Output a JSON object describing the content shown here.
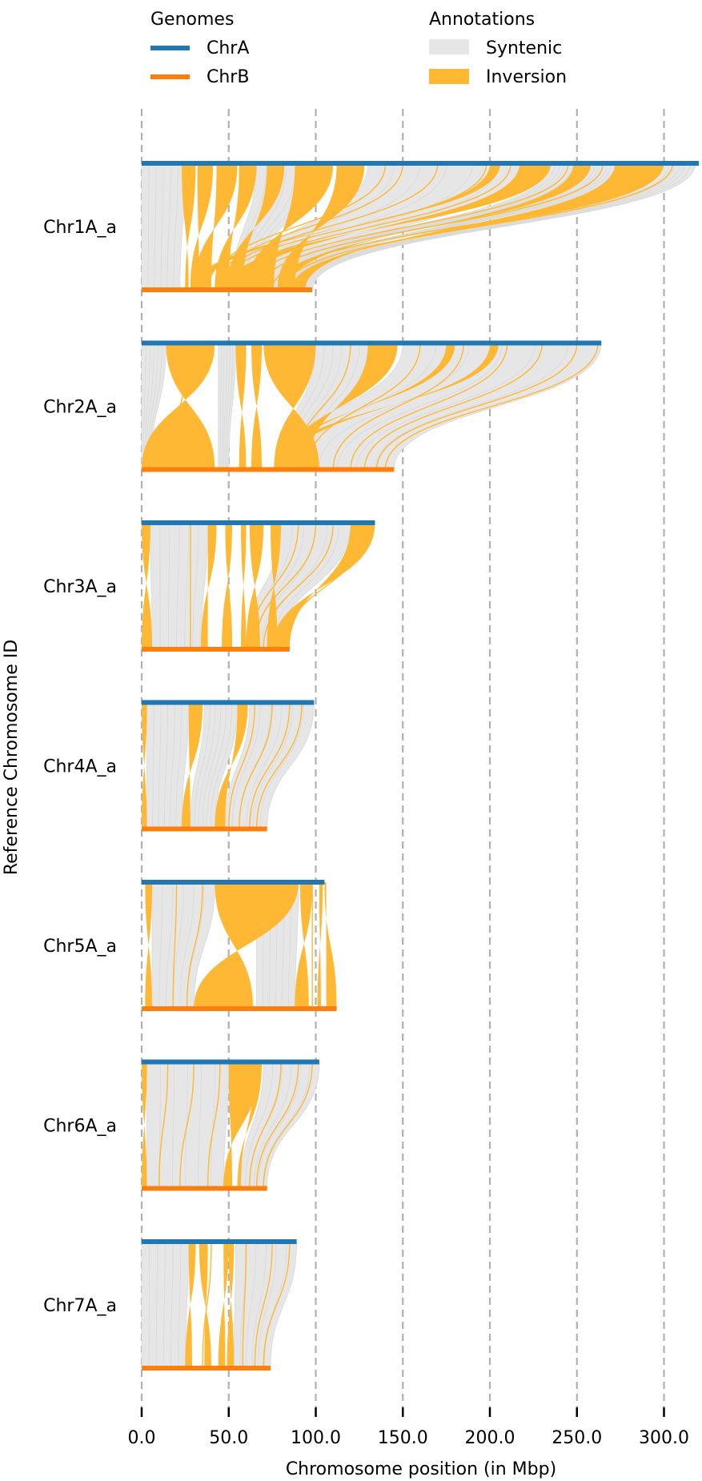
{
  "legend": {
    "genomes_title": "Genomes",
    "annotations_title": "Annotations",
    "genomes": [
      {
        "name": "ChrA",
        "color": "#1f77b4"
      },
      {
        "name": "ChrB",
        "color": "#ff7f0e"
      }
    ],
    "annotations": [
      {
        "name": "Syntenic",
        "color": "#e6e6e6"
      },
      {
        "name": "Inversion",
        "color": "#ffb833"
      }
    ]
  },
  "chart_data": {
    "type": "synteny-ribbon",
    "xlabel": "Chromosome position (in Mbp)",
    "ylabel": "Reference Chromosome ID",
    "xlim": [
      0,
      320
    ],
    "xticks": [
      0,
      50,
      100,
      150,
      200,
      250,
      300
    ],
    "xtick_labels": [
      "0.0",
      "50.0",
      "100.0",
      "150.0",
      "200.0",
      "250.0",
      "300.0"
    ],
    "grid": "vertical dashed at x ticks",
    "legend_placement": "top",
    "chromosomes": [
      {
        "id": "Chr1A_a",
        "chrA_length": 320,
        "chrB_length": 98,
        "inversions": [
          [
            23,
            31,
            25,
            27
          ],
          [
            32,
            41,
            28,
            33
          ],
          [
            43,
            55,
            30,
            40
          ],
          [
            56,
            66,
            42,
            50
          ],
          [
            72,
            82,
            49,
            58
          ],
          [
            88,
            110,
            60,
            76
          ],
          [
            112,
            128,
            78,
            88
          ],
          [
            200,
            206,
            30,
            36
          ],
          [
            217,
            235,
            48,
            60
          ],
          [
            248,
            258,
            78,
            84
          ],
          [
            272,
            300,
            86,
            94
          ]
        ],
        "syntenic": [
          [
            0,
            25,
            0,
            22
          ],
          [
            66,
            100,
            52,
            62
          ],
          [
            130,
            220,
            55,
            80
          ],
          [
            235,
            250,
            70,
            80
          ],
          [
            258,
            272,
            84,
            88
          ],
          [
            300,
            318,
            90,
            98
          ]
        ],
        "thin": [
          [
            150,
            43
          ],
          [
            198,
            46
          ],
          [
            212,
            52
          ],
          [
            245,
            62
          ],
          [
            265,
            68
          ],
          [
            290,
            75
          ],
          [
            305,
            82
          ],
          [
            295,
            88
          ],
          [
            140,
            38
          ],
          [
            170,
            45
          ]
        ]
      },
      {
        "id": "Chr2A_a",
        "chrA_length": 264,
        "chrB_length": 145,
        "inversions": [
          [
            14,
            42,
            0,
            42
          ],
          [
            54,
            60,
            56,
            60
          ],
          [
            63,
            69,
            63,
            69
          ],
          [
            70,
            100,
            76,
            102
          ],
          [
            130,
            147,
            82,
            95
          ],
          [
            175,
            180,
            78,
            82
          ],
          [
            200,
            205,
            78,
            84
          ]
        ],
        "syntenic": [
          [
            0,
            14,
            0,
            5
          ],
          [
            44,
            54,
            44,
            50
          ],
          [
            100,
            130,
            80,
            95
          ],
          [
            150,
            264,
            80,
            145
          ]
        ],
        "thin": [
          [
            27,
            17
          ],
          [
            120,
            88
          ],
          [
            160,
            95
          ],
          [
            185,
            110
          ],
          [
            210,
            120
          ],
          [
            230,
            128
          ],
          [
            250,
            135
          ],
          [
            262,
            140
          ]
        ]
      },
      {
        "id": "Chr3A_a",
        "chrA_length": 134,
        "chrB_length": 85,
        "inversions": [
          [
            0,
            5,
            0,
            6
          ],
          [
            38,
            43,
            34,
            38
          ],
          [
            48,
            52,
            46,
            52
          ],
          [
            57,
            60,
            57,
            60
          ],
          [
            62,
            70,
            60,
            68
          ],
          [
            74,
            80,
            72,
            78
          ],
          [
            120,
            134,
            75,
            85
          ]
        ],
        "syntenic": [
          [
            5,
            38,
            6,
            34
          ],
          [
            80,
            120,
            60,
            78
          ]
        ],
        "thin": [
          [
            28,
            28
          ],
          [
            90,
            62
          ],
          [
            100,
            65
          ],
          [
            110,
            70
          ],
          [
            130,
            82
          ]
        ]
      },
      {
        "id": "Chr4A_a",
        "chrA_length": 99,
        "chrB_length": 72,
        "inversions": [
          [
            0,
            3,
            0,
            3
          ],
          [
            27,
            35,
            23,
            28
          ],
          [
            55,
            61,
            42,
            48
          ]
        ],
        "syntenic": [
          [
            3,
            27,
            3,
            23
          ],
          [
            36,
            55,
            28,
            42
          ],
          [
            62,
            99,
            48,
            72
          ]
        ],
        "thin": [
          [
            65,
            50
          ],
          [
            75,
            56
          ],
          [
            85,
            62
          ],
          [
            92,
            66
          ]
        ]
      },
      {
        "id": "Chr5A_a",
        "chrA_length": 105,
        "chrB_length": 112,
        "inversions": [
          [
            2,
            6,
            2,
            6
          ],
          [
            42,
            90,
            30,
            64
          ],
          [
            91,
            98,
            88,
            96
          ],
          [
            102,
            104,
            101,
            103
          ],
          [
            105,
            106,
            106,
            112
          ]
        ],
        "syntenic": [
          [
            6,
            42,
            6,
            30
          ],
          [
            66,
            90,
            66,
            88
          ]
        ],
        "thin": [
          [
            20,
            18
          ],
          [
            35,
            26
          ],
          [
            98,
            98
          ]
        ]
      },
      {
        "id": "Chr6A_a",
        "chrA_length": 102,
        "chrB_length": 72,
        "inversions": [
          [
            0,
            3,
            0,
            3
          ],
          [
            50,
            68,
            47,
            52
          ],
          [
            65,
            69,
            55,
            57
          ]
        ],
        "syntenic": [
          [
            3,
            50,
            3,
            47
          ],
          [
            70,
            102,
            57,
            72
          ]
        ],
        "thin": [
          [
            15,
            10
          ],
          [
            30,
            22
          ],
          [
            45,
            38
          ],
          [
            80,
            62
          ],
          [
            90,
            66
          ],
          [
            98,
            70
          ]
        ]
      },
      {
        "id": "Chr7A_a",
        "chrA_length": 89,
        "chrB_length": 74,
        "inversions": [
          [
            27,
            31,
            25,
            29
          ],
          [
            33,
            38,
            36,
            40
          ],
          [
            47,
            50,
            44,
            48
          ],
          [
            50,
            53,
            49,
            53
          ]
        ],
        "syntenic": [
          [
            0,
            27,
            0,
            25
          ],
          [
            54,
            89,
            53,
            74
          ]
        ],
        "thin": [
          [
            40,
            35
          ],
          [
            60,
            58
          ],
          [
            75,
            65
          ],
          [
            85,
            70
          ]
        ]
      }
    ]
  }
}
